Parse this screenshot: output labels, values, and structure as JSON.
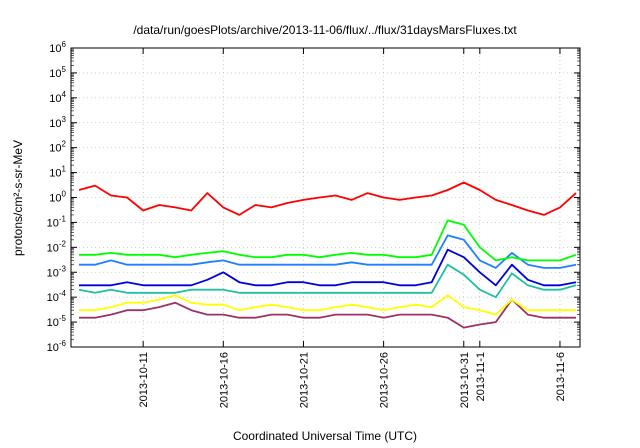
{
  "chart_data": {
    "type": "line",
    "title": "/data/run/goesPlots/archive/2013-11-06/flux/../flux/31daysMarsFluxes.txt",
    "xlabel": "Coordinated Universal Time (UTC)",
    "ylabel": "protons/cm²-s-sr-MeV",
    "yscale": "log",
    "ylim": [
      1e-06,
      1000000.0
    ],
    "xlim": [
      "2013-10-06T12:00",
      "2013-11-07T06:00"
    ],
    "x_tick_labels": [
      "2013-10-11",
      "2013-10-16",
      "2013-10-21",
      "2013-10-26",
      "2013-10-31",
      "2013-11-1",
      "2013-11-6"
    ],
    "x_tick_dates": [
      "2013-10-11",
      "2013-10-16",
      "2013-10-21",
      "2013-10-26",
      "2013-10-31",
      "2013-11-01",
      "2013-11-06"
    ],
    "y_tick_exponents": [
      -6,
      -5,
      -4,
      -3,
      -2,
      -1,
      0,
      1,
      2,
      3,
      4,
      5,
      6
    ],
    "grid": true,
    "legend": "none",
    "x": [
      "2013-10-07",
      "2013-10-08",
      "2013-10-09",
      "2013-10-10",
      "2013-10-11",
      "2013-10-12",
      "2013-10-13",
      "2013-10-14",
      "2013-10-15",
      "2013-10-16",
      "2013-10-17",
      "2013-10-18",
      "2013-10-19",
      "2013-10-20",
      "2013-10-21",
      "2013-10-22",
      "2013-10-23",
      "2013-10-24",
      "2013-10-25",
      "2013-10-26",
      "2013-10-27",
      "2013-10-28",
      "2013-10-29",
      "2013-10-30",
      "2013-10-31",
      "2013-11-01",
      "2013-11-02",
      "2013-11-03",
      "2013-11-04",
      "2013-11-05",
      "2013-11-06",
      "2013-11-07"
    ],
    "series": [
      {
        "color": "#ff0000",
        "values": [
          2,
          3,
          1.2,
          1,
          0.3,
          0.5,
          0.4,
          0.3,
          1.5,
          0.4,
          0.2,
          0.5,
          0.4,
          0.6,
          0.8,
          1,
          1.2,
          0.8,
          1.5,
          1,
          0.8,
          1,
          1.2,
          2,
          4,
          2,
          0.8,
          0.5,
          0.3,
          0.2,
          0.4,
          1.5
        ]
      },
      {
        "color": "#00ff00",
        "values": [
          0.005,
          0.005,
          0.006,
          0.005,
          0.005,
          0.005,
          0.004,
          0.005,
          0.006,
          0.007,
          0.005,
          0.004,
          0.004,
          0.005,
          0.005,
          0.004,
          0.005,
          0.006,
          0.005,
          0.005,
          0.004,
          0.004,
          0.005,
          0.12,
          0.08,
          0.01,
          0.003,
          0.004,
          0.003,
          0.003,
          0.003,
          0.005
        ]
      },
      {
        "color": "#1e7fff",
        "values": [
          0.002,
          0.002,
          0.003,
          0.002,
          0.002,
          0.002,
          0.002,
          0.002,
          0.0025,
          0.003,
          0.002,
          0.002,
          0.002,
          0.002,
          0.002,
          0.002,
          0.002,
          0.0025,
          0.002,
          0.002,
          0.002,
          0.002,
          0.002,
          0.03,
          0.02,
          0.003,
          0.0015,
          0.006,
          0.002,
          0.0015,
          0.0015,
          0.002
        ]
      },
      {
        "color": "#0000dd",
        "values": [
          0.0003,
          0.0003,
          0.0003,
          0.0004,
          0.0003,
          0.0003,
          0.0003,
          0.0003,
          0.0005,
          0.001,
          0.0004,
          0.0003,
          0.0003,
          0.0004,
          0.0004,
          0.0003,
          0.0003,
          0.0004,
          0.0004,
          0.0004,
          0.0003,
          0.0003,
          0.0004,
          0.008,
          0.004,
          0.001,
          0.0003,
          0.002,
          0.0005,
          0.0003,
          0.0003,
          0.0004
        ]
      },
      {
        "color": "#20c0a0",
        "values": [
          0.0002,
          0.00015,
          0.0002,
          0.00015,
          0.00015,
          0.00015,
          0.00015,
          0.0002,
          0.0002,
          0.0002,
          0.00015,
          0.00015,
          0.00015,
          0.00015,
          0.00015,
          0.00015,
          0.00015,
          0.00015,
          0.00015,
          0.00015,
          0.00015,
          0.00015,
          0.00015,
          0.002,
          0.0008,
          0.0002,
          0.0001,
          0.0009,
          0.0003,
          0.0002,
          0.0002,
          0.0003
        ]
      },
      {
        "color": "#ffff00",
        "values": [
          3e-05,
          3e-05,
          4e-05,
          6e-05,
          6e-05,
          8e-05,
          0.00012,
          6e-05,
          5e-05,
          5e-05,
          3e-05,
          4e-05,
          5e-05,
          4e-05,
          3e-05,
          3e-05,
          4e-05,
          5e-05,
          4e-05,
          3e-05,
          4e-05,
          5e-05,
          4e-05,
          0.00012,
          4e-05,
          3e-05,
          2e-05,
          8e-05,
          3e-05,
          3e-05,
          3e-05,
          3e-05
        ]
      },
      {
        "color": "#993366",
        "values": [
          1.5e-05,
          1.5e-05,
          2e-05,
          3e-05,
          3e-05,
          4e-05,
          6e-05,
          3e-05,
          2e-05,
          2e-05,
          1.5e-05,
          1.5e-05,
          2e-05,
          2e-05,
          1.5e-05,
          1.5e-05,
          2e-05,
          2e-05,
          2e-05,
          1.5e-05,
          2e-05,
          2e-05,
          2e-05,
          1.5e-05,
          6e-06,
          8e-06,
          1e-05,
          8e-05,
          2e-05,
          1.5e-05,
          1.5e-05,
          1.5e-05
        ]
      }
    ]
  }
}
